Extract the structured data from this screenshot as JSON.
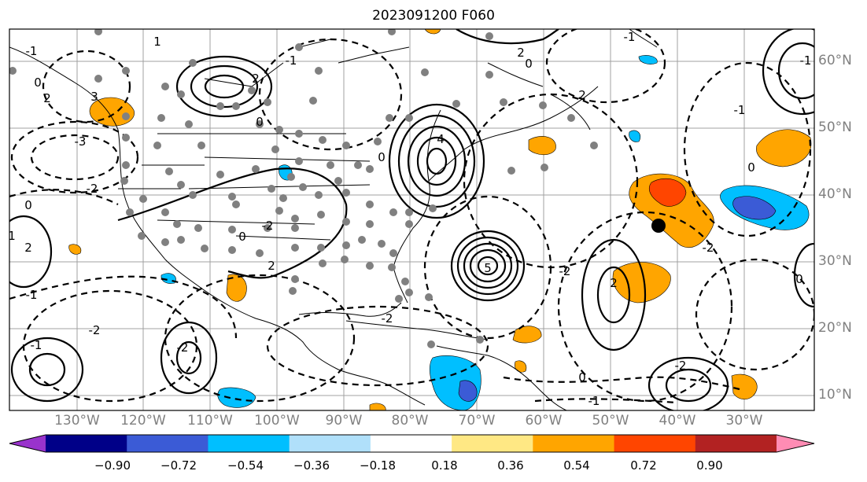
{
  "title": "2023091200 F060",
  "lon_labels": [
    "130°W",
    "120°W",
    "110°W",
    "100°W",
    "90°W",
    "80°W",
    "70°W",
    "60°W",
    "50°W",
    "40°W",
    "30°W"
  ],
  "lat_labels": [
    "60°N",
    "50°N",
    "40°N",
    "30°N",
    "20°N",
    "10°N"
  ],
  "colorbar": {
    "colors": [
      "#9933cc",
      "#000088",
      "#3b5bd6",
      "#00bfff",
      "#b0e0fa",
      "#ffffff",
      "#ffe884",
      "#ffa500",
      "#ff4500",
      "#b22222",
      "#ff8cb4"
    ],
    "labels": [
      "−0.90",
      "−0.72",
      "−0.54",
      "−0.36",
      "−0.18",
      "0.18",
      "0.36",
      "0.54",
      "0.72",
      "0.90"
    ]
  },
  "contour_labels": [
    "-1",
    "0",
    "1",
    "2",
    "3",
    "0",
    "-1",
    "2",
    "-2",
    "-3",
    "0",
    "-1",
    "1",
    "2",
    "-2",
    "2",
    "-2",
    "0",
    "-1",
    "-2",
    "-2",
    "0",
    "4",
    "2",
    "0",
    "5",
    "2",
    "-1",
    "-2",
    "-2",
    "0",
    "-1",
    "0",
    "-1",
    "2",
    "0",
    "-1",
    "-2"
  ]
}
